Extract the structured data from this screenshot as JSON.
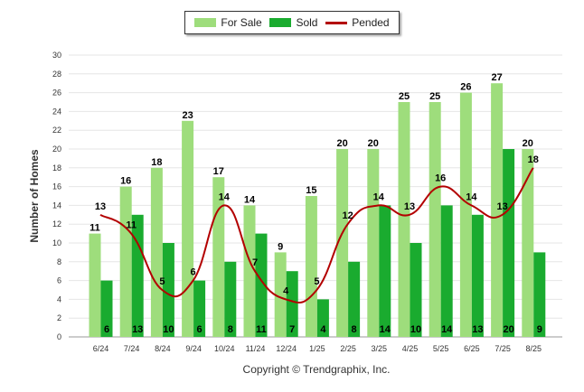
{
  "chart_data": {
    "type": "bar",
    "categories": [
      "6/24",
      "7/24",
      "8/24",
      "9/24",
      "10/24",
      "11/24",
      "12/24",
      "1/25",
      "2/25",
      "3/25",
      "4/25",
      "5/25",
      "6/25",
      "7/25",
      "8/25"
    ],
    "series": [
      {
        "name": "For Sale",
        "type": "bar",
        "color": "#9edd7c",
        "values": [
          11,
          16,
          18,
          23,
          17,
          14,
          9,
          15,
          20,
          20,
          25,
          25,
          26,
          27,
          20
        ]
      },
      {
        "name": "Sold",
        "type": "bar",
        "color": "#1aab2f",
        "values": [
          6,
          13,
          10,
          6,
          8,
          11,
          7,
          4,
          8,
          14,
          10,
          14,
          13,
          20,
          9
        ]
      },
      {
        "name": "Pended",
        "type": "line",
        "color": "#b30000",
        "values": [
          13,
          11,
          5,
          6,
          14,
          7,
          4,
          5,
          12,
          14,
          13,
          16,
          14,
          13,
          18
        ]
      }
    ],
    "ylabel": "Number of Homes",
    "ylim": [
      0,
      30
    ],
    "yticks": [
      0,
      2,
      4,
      6,
      8,
      10,
      12,
      14,
      16,
      18,
      20,
      22,
      24,
      26,
      28,
      30
    ],
    "grid": true,
    "legend_position": "top-center"
  },
  "copyright": "Copyright © Trendgraphix, Inc."
}
